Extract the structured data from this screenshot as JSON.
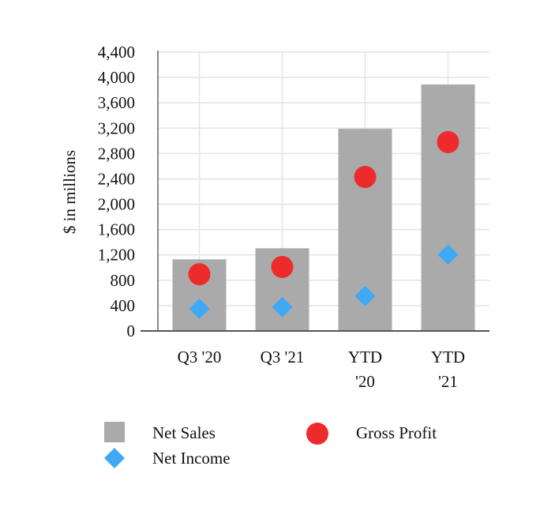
{
  "chart_data": {
    "type": "bar",
    "categories": [
      [
        "Q3 '20"
      ],
      [
        "Q3 '21"
      ],
      [
        "YTD",
        "'20"
      ],
      [
        "YTD",
        "'21"
      ]
    ],
    "ylabel": "$ in millions",
    "ylim": [
      0,
      4400
    ],
    "yticks": [
      "0",
      "400",
      "800",
      "1,200",
      "1,600",
      "2,000",
      "2,400",
      "2,800",
      "3,200",
      "3,600",
      "4,000",
      "4,400"
    ],
    "ytick_values": [
      0,
      400,
      800,
      1200,
      1600,
      2000,
      2400,
      2800,
      3200,
      3600,
      4000,
      4400
    ],
    "grid": true,
    "series": [
      {
        "name": "Net Sales",
        "type": "bar",
        "color": "#aaaaaa",
        "marker": "square",
        "values": [
          1130,
          1305,
          3190,
          3890
        ]
      },
      {
        "name": "Gross Profit",
        "type": "scatter",
        "color": "#ee2b2b",
        "marker": "circle",
        "values": [
          895,
          1010,
          2430,
          2980
        ]
      },
      {
        "name": "Net Income",
        "type": "scatter",
        "color": "#3fa9f5",
        "marker": "diamond",
        "values": [
          350,
          375,
          550,
          1205
        ]
      }
    ],
    "legend": {
      "placement": "bottom"
    }
  }
}
